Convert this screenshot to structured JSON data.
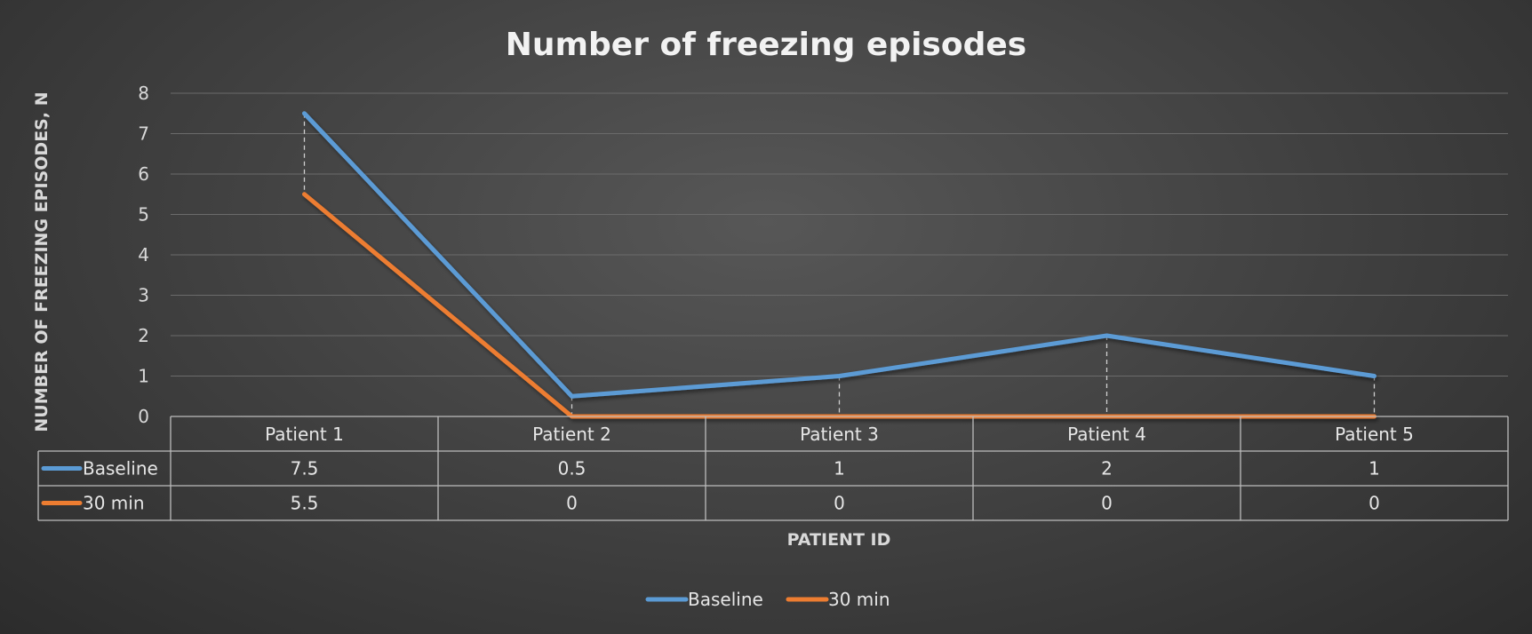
{
  "chart_data": {
    "type": "line",
    "title": "Number of freezing episodes",
    "xlabel": "PATIENT ID",
    "ylabel": "NUMBER OF FREEZING EPISODES, N",
    "categories": [
      "Patient 1",
      "Patient 2",
      "Patient 3",
      "Patient 4",
      "Patient 5"
    ],
    "ylim": [
      0,
      8
    ],
    "yticks": [
      0,
      1,
      2,
      3,
      4,
      5,
      6,
      7,
      8
    ],
    "grid": true,
    "legend_position": "bottom",
    "data_table": true,
    "drop_lines": true,
    "series": [
      {
        "name": "Baseline",
        "values": [
          7.5,
          0.5,
          1,
          2,
          1
        ],
        "labels": [
          "7.5",
          "0.5",
          "1",
          "2",
          "1"
        ],
        "color": "#5b9bd5"
      },
      {
        "name": "30 min",
        "values": [
          5.5,
          0,
          0,
          0,
          0
        ],
        "labels": [
          "5.5",
          "0",
          "0",
          "0",
          "0"
        ],
        "color": "#ed7d31"
      }
    ]
  }
}
